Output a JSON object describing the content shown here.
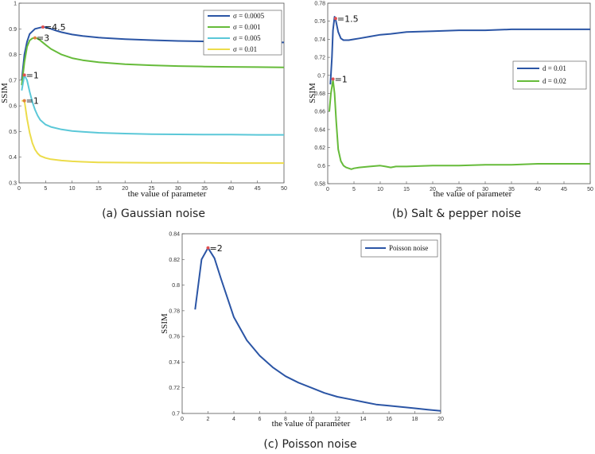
{
  "figure_captions": [
    "(a) Gaussian noise",
    "(b) Salt & pepper noise",
    "(c) Poisson noise"
  ],
  "chart_data": [
    {
      "type": "line",
      "title": "(a) Gaussian noise",
      "xlabel": "the value of parameter",
      "ylabel": "SSIM",
      "xlim": [
        0,
        50
      ],
      "ylim": [
        0.3,
        1.0
      ],
      "xticks": [
        0,
        5,
        10,
        15,
        20,
        25,
        30,
        35,
        40,
        45,
        50
      ],
      "yticks": [
        0.3,
        0.4,
        0.5,
        0.6,
        0.7,
        0.8,
        0.9,
        1.0
      ],
      "legend_position": "top-right",
      "series": [
        {
          "name": "σ = 0.0005",
          "color": "#2b55a5",
          "x": [
            0.5,
            1,
            1.5,
            2,
            3,
            4,
            4.5,
            5,
            6,
            7,
            8,
            10,
            12,
            15,
            20,
            25,
            30,
            35,
            40,
            45,
            50
          ],
          "y": [
            0.7,
            0.8,
            0.85,
            0.88,
            0.9,
            0.905,
            0.907,
            0.906,
            0.9,
            0.893,
            0.887,
            0.878,
            0.872,
            0.866,
            0.86,
            0.856,
            0.853,
            0.851,
            0.849,
            0.848,
            0.847
          ]
        },
        {
          "name": "σ = 0.001",
          "color": "#66bb3a",
          "x": [
            0.5,
            1,
            1.5,
            2,
            2.5,
            3,
            3.5,
            4,
            5,
            6,
            8,
            10,
            12,
            15,
            20,
            25,
            30,
            35,
            40,
            45,
            50
          ],
          "y": [
            0.68,
            0.77,
            0.83,
            0.855,
            0.863,
            0.865,
            0.862,
            0.855,
            0.838,
            0.822,
            0.8,
            0.786,
            0.778,
            0.77,
            0.762,
            0.758,
            0.755,
            0.753,
            0.752,
            0.751,
            0.75
          ]
        },
        {
          "name": "σ = 0.005",
          "color": "#5bc8d8",
          "x": [
            0.5,
            1,
            1.5,
            2,
            2.5,
            3,
            3.5,
            4,
            5,
            6,
            8,
            10,
            12,
            15,
            20,
            25,
            30,
            35,
            40,
            45,
            50
          ],
          "y": [
            0.66,
            0.72,
            0.7,
            0.655,
            0.615,
            0.585,
            0.562,
            0.545,
            0.527,
            0.518,
            0.508,
            0.502,
            0.499,
            0.495,
            0.492,
            0.49,
            0.489,
            0.488,
            0.488,
            0.487,
            0.487
          ]
        },
        {
          "name": "σ = 0.01",
          "color": "#ecdc4a",
          "x": [
            0.5,
            1,
            1.5,
            2,
            2.5,
            3,
            3.5,
            4,
            5,
            6,
            8,
            10,
            12,
            15,
            20,
            25,
            30,
            35,
            40,
            45,
            50
          ],
          "y": [
            0.62,
            0.62,
            0.55,
            0.495,
            0.455,
            0.43,
            0.415,
            0.405,
            0.397,
            0.392,
            0.387,
            0.384,
            0.382,
            0.38,
            0.379,
            0.378,
            0.378,
            0.378,
            0.377,
            0.377,
            0.377
          ]
        }
      ],
      "annotations": [
        {
          "label": "=4.5",
          "x": 4.5,
          "y": 0.907,
          "color": "#e05050"
        },
        {
          "label": "=3",
          "x": 3,
          "y": 0.865,
          "color": "#e08040"
        },
        {
          "label": "=1",
          "x": 1,
          "y": 0.72,
          "color": "#e05050"
        },
        {
          "label": "=1",
          "x": 1,
          "y": 0.62,
          "color": "#e08040"
        }
      ]
    },
    {
      "type": "line",
      "title": "(b) Salt & pepper noise",
      "xlabel": "the value of parameter",
      "ylabel": "SSIM",
      "xlim": [
        0,
        50
      ],
      "ylim": [
        0.58,
        0.78
      ],
      "xticks": [
        0,
        5,
        10,
        15,
        20,
        25,
        30,
        35,
        40,
        45,
        50
      ],
      "yticks": [
        0.58,
        0.6,
        0.62,
        0.64,
        0.66,
        0.68,
        0.7,
        0.72,
        0.74,
        0.76,
        0.78
      ],
      "legend_position": "center-right",
      "series": [
        {
          "name": "d = 0.01",
          "color": "#2b55a5",
          "x": [
            0.5,
            0.8,
            1,
            1.3,
            1.5,
            2,
            2.5,
            3,
            4,
            5,
            6,
            8,
            10,
            12,
            15,
            20,
            25,
            30,
            35,
            40,
            45,
            50
          ],
          "y": [
            0.69,
            0.72,
            0.75,
            0.765,
            0.762,
            0.748,
            0.741,
            0.739,
            0.739,
            0.74,
            0.741,
            0.743,
            0.745,
            0.746,
            0.748,
            0.749,
            0.75,
            0.75,
            0.751,
            0.751,
            0.751,
            0.751
          ]
        },
        {
          "name": "d = 0.02",
          "color": "#66bb3a",
          "x": [
            0.3,
            0.6,
            1,
            1.3,
            1.6,
            2,
            2.5,
            3,
            3.5,
            4,
            4.5,
            5,
            6,
            8,
            10,
            11,
            12,
            13,
            15,
            20,
            25,
            30,
            35,
            40,
            45,
            50
          ],
          "y": [
            0.66,
            0.68,
            0.695,
            0.68,
            0.65,
            0.618,
            0.605,
            0.6,
            0.598,
            0.597,
            0.596,
            0.597,
            0.598,
            0.599,
            0.6,
            0.599,
            0.598,
            0.599,
            0.599,
            0.6,
            0.6,
            0.601,
            0.601,
            0.602,
            0.602,
            0.602
          ]
        }
      ],
      "annotations": [
        {
          "label": "=1.5",
          "x": 1.5,
          "y": 0.763,
          "color": "#e05050"
        },
        {
          "label": "=1",
          "x": 1,
          "y": 0.696,
          "color": "#e05050"
        }
      ]
    },
    {
      "type": "line",
      "title": "(c) Poisson noise",
      "xlabel": "the value of parameter",
      "ylabel": "SSIM",
      "xlim": [
        0,
        20
      ],
      "ylim": [
        0.7,
        0.84
      ],
      "xticks": [
        0,
        2,
        4,
        6,
        8,
        10,
        12,
        14,
        16,
        18,
        20
      ],
      "yticks": [
        0.7,
        0.72,
        0.74,
        0.76,
        0.78,
        0.8,
        0.82,
        0.84
      ],
      "legend_position": "top-right",
      "series": [
        {
          "name": "Poisson noise",
          "color": "#2b55a5",
          "x": [
            1,
            1.5,
            2,
            2.5,
            3,
            3.5,
            4,
            5,
            6,
            7,
            8,
            9,
            10,
            11,
            12,
            13,
            14,
            15,
            16,
            17,
            18,
            19,
            20
          ],
          "y": [
            0.781,
            0.82,
            0.829,
            0.821,
            0.805,
            0.79,
            0.775,
            0.757,
            0.745,
            0.736,
            0.729,
            0.724,
            0.72,
            0.716,
            0.713,
            0.711,
            0.709,
            0.707,
            0.706,
            0.705,
            0.704,
            0.703,
            0.702
          ]
        }
      ],
      "annotations": [
        {
          "label": "=2",
          "x": 2,
          "y": 0.829,
          "color": "#e05050"
        }
      ]
    }
  ]
}
